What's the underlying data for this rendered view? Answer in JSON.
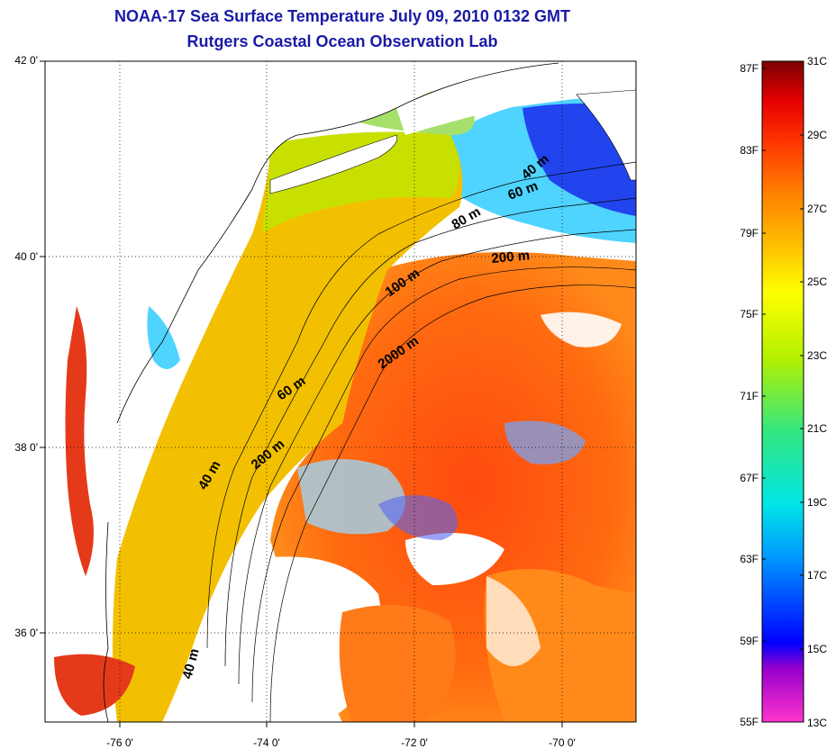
{
  "title": {
    "line1": "NOAA-17 Sea Surface Temperature July 09, 2010 0132 GMT",
    "line2": "Rutgers Coastal Ocean Observation Lab"
  },
  "axes": {
    "latitude_labels": [
      "42 0'",
      "40 0'",
      "38 0'",
      "36 0'"
    ],
    "longitude_labels": [
      "-76 0'",
      "-74 0'",
      "-72 0'",
      "-70 0'"
    ]
  },
  "depth_labels": [
    "40 m",
    "60 m",
    "80 m",
    "200 m",
    "100 m",
    "2000 m",
    "60 m",
    "200 m",
    "40 m",
    "40 m"
  ],
  "colorbar": {
    "fahrenheit": [
      "87F",
      "83F",
      "79F",
      "75F",
      "71F",
      "67F",
      "63F",
      "59F",
      "55F"
    ],
    "celsius": [
      "31C",
      "29C",
      "27C",
      "25C",
      "23C",
      "21C",
      "19C",
      "17C",
      "15C",
      "13C"
    ],
    "gradient": [
      "#ff33cc",
      "#9900cc",
      "#0000ff",
      "#0099ff",
      "#00e6e6",
      "#33e680",
      "#b3f000",
      "#ffff00",
      "#ffc000",
      "#ff8000",
      "#ff3300",
      "#e60000",
      "#7a0000"
    ]
  },
  "colors": {
    "title": "#1a1aa6",
    "land": "#ffffff",
    "cloud": "#ffffff",
    "shelf_water": "#f2c000",
    "gulf_stream": "#ff6a10",
    "cold_water": "#2244ee"
  }
}
